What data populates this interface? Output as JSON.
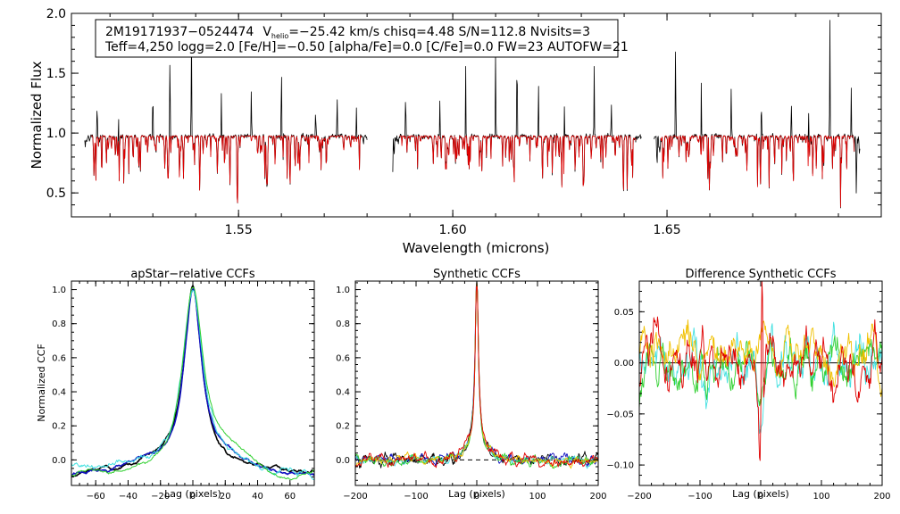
{
  "chart_data": [
    {
      "type": "line",
      "id": "spectrum",
      "title": "",
      "xlabel": "Wavelength (microns)",
      "ylabel": "Normalized Flux",
      "xlim": [
        1.511,
        1.7
      ],
      "ylim": [
        0.3,
        2.0
      ],
      "xticks": [
        1.55,
        1.6,
        1.65
      ],
      "xtick_labels": [
        "1.55",
        "1.60",
        "1.65"
      ],
      "yticks": [
        0.5,
        1.0,
        1.5,
        2.0
      ],
      "ytick_labels": [
        "0.5",
        "1.0",
        "1.5",
        "2.0"
      ],
      "info_box": {
        "line1_star": "2M19171937−0524474",
        "line1_v": "V",
        "line1_v_sub": "helio",
        "line1_rest": "=−25.42 km/s  chisq=4.48  S/N=112.8  Nvisits=3",
        "line2": "Teff=4,250 logg=2.0 [Fe/H]=−0.50 [alpha/Fe]=0.0 [C/Fe]=0.0 FW=23 AUTOFW=21"
      },
      "chips": [
        [
          1.514,
          1.58
        ],
        [
          1.586,
          1.644
        ],
        [
          1.647,
          1.695
        ]
      ],
      "series": [
        {
          "name": "observed",
          "color": "#000000"
        },
        {
          "name": "model",
          "color": "#e00000"
        }
      ]
    },
    {
      "type": "line",
      "id": "ccf1",
      "title": "apStar−relative CCFs",
      "xlabel": "Lag (pixels)",
      "ylabel": "Normalized CCF",
      "xlim": [
        -75,
        75
      ],
      "ylim": [
        -0.15,
        1.05
      ],
      "xticks": [
        -60,
        -40,
        -20,
        0,
        20,
        40,
        60
      ],
      "xtick_labels": [
        "−60",
        "−40",
        "−20",
        "0",
        "20",
        "40",
        "60"
      ],
      "yticks": [
        0.0,
        0.2,
        0.4,
        0.6,
        0.8,
        1.0
      ],
      "ytick_labels": [
        "0.0",
        "0.2",
        "0.4",
        "0.6",
        "0.8",
        "1.0"
      ],
      "series": [
        {
          "name": "visit 1",
          "color": "#000000"
        },
        {
          "name": "visit 2",
          "color": "#1010c0"
        },
        {
          "name": "visit 3",
          "color": "#40e0e0"
        },
        {
          "name": "visit 4",
          "color": "#30d030"
        }
      ]
    },
    {
      "type": "line",
      "id": "ccf2",
      "title": "Synthetic CCFs",
      "xlabel": "Lag (pixels)",
      "ylabel": "",
      "xlim": [
        -200,
        200
      ],
      "ylim": [
        -0.15,
        1.05
      ],
      "xticks": [
        -200,
        -100,
        0,
        100,
        200
      ],
      "xtick_labels": [
        "−200",
        "−100",
        "0",
        "100",
        "200"
      ],
      "yticks": [
        0.0,
        0.2,
        0.4,
        0.6,
        0.8,
        1.0
      ],
      "ytick_labels": [
        "0.0",
        "0.2",
        "0.4",
        "0.6",
        "0.8",
        "1.0"
      ],
      "zero_line": "dashed",
      "series": [
        {
          "name": "visit 1",
          "color": "#000000"
        },
        {
          "name": "visit 2",
          "color": "#1010c0"
        },
        {
          "name": "visit 3",
          "color": "#40e0e0"
        },
        {
          "name": "visit 4",
          "color": "#30d030"
        },
        {
          "name": "visit 5",
          "color": "#f0c000"
        },
        {
          "name": "visit 6",
          "color": "#e00000"
        }
      ]
    },
    {
      "type": "line",
      "id": "ccf3",
      "title": "Difference Synthetic CCFs",
      "xlabel": "Lag (pixels)",
      "ylabel": "",
      "xlim": [
        -200,
        200
      ],
      "ylim": [
        -0.12,
        0.08
      ],
      "xticks": [
        -200,
        -100,
        0,
        100,
        200
      ],
      "xtick_labels": [
        "−200",
        "−100",
        "0",
        "100",
        "200"
      ],
      "yticks": [
        -0.1,
        -0.05,
        0.0,
        0.05
      ],
      "ytick_labels": [
        "−0.10",
        "−0.05",
        "0.00",
        "0.05"
      ],
      "zero_line": "solid",
      "series": [
        {
          "name": "visit 1",
          "color": "#40e0e0"
        },
        {
          "name": "visit 2",
          "color": "#30d030"
        },
        {
          "name": "visit 3",
          "color": "#f0c000"
        },
        {
          "name": "visit 4",
          "color": "#e00000"
        }
      ]
    }
  ]
}
